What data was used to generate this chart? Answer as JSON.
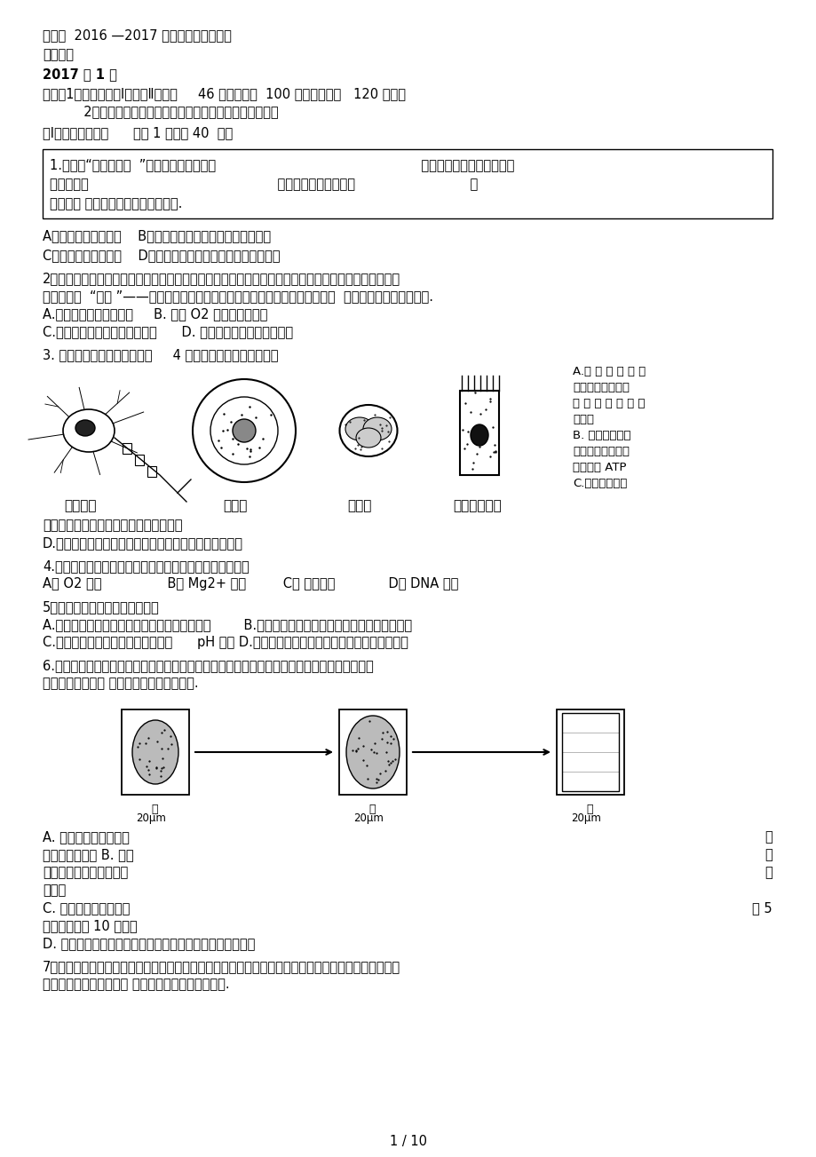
{
  "bg_color": "#ffffff",
  "text_color": "#000000",
  "page_width": 9.2,
  "page_height": 13.03,
  "title1": "通州区  2016 —2017 学年度高三摸底考试",
  "title2": "生物试卷",
  "title3": "2017 年 1 月",
  "inst1": "说明：1、本试卷分第Ⅰ卷、第Ⅱ卷，共     46 道题，满分  100 分，考试时间   120 分钟。",
  "inst2": "          2、所有答案都写在机读答题卡上，写在试卷上不得分。",
  "section_title": "第Ⅰ卷（单项选择题      每题 1 分，共 40  分）",
  "q1_line1": "1.被誉为“生命营养库  ”的螺旋藻属于蓝藻，                                                  其营养成分和生理活性物质",
  "q1_line2": "十分丰富。                                              下列关于螺旋藻的叙述                            ，",
  "q1_line3": "正确的是 因炸渋区彩绸胸断序抜㛅前.",
  "q1_optA": "A．细胞中没有生物膜    B．遗传过程同样遵循孟德尔遗传定律",
  "q1_optC": "C．细胞中没有细胞器    D．细胞中有遗传物质，并能合成蛋白质",
  "q2_line1": "2．细胞在生命活动中发生着物质和能量的复杂变化。细胞内部就像一个繁忙的工厂，在细胞质中有许多",
  "q2_line2": "忙碌不停的  “车间 ”——细胞器。下列关于高等植物细胞内细胞器叙述正确的是  因封娨鳞胸愛一婑尔淡测.",
  "q2_optA": "A.酒精产生的场所是液泡     B. 产生 O2 的场所是叶绻体",
  "q2_optC": "C.籺锤体形成的场所是高尔基体      D. 生长素合成的场所是核糖体",
  "q3_text": "3. 下图所示为来自同一人体的     4 种细胞，下列叙述错误的是",
  "q3_rA1": "A.虽 然 来 自 同 一",
  "q3_rA2": "人体，但各细胞中",
  "q3_rA3": "遗 传 物 质 含 量 并",
  "q3_rA4": "不相同",
  "q3_rB1": "B. 虽然各细胞的",
  "q3_rB2": "生理功能不同，但",
  "q3_rB3": "都能产生 ATP",
  "q3_rC1": "C.虽然各细胞大",
  "q3_lC": "小不同，但细胞中所含的蛋白质种类相同",
  "q3_lD": "D.虽然各细胞中携带的基因相同，但进行表达的基因不同",
  "q4_text": "4.下列在叶绻体中发生的生理过程，不需要蛋白质参与的是",
  "q4_options": "A． O2 扩散                B． Mg2+ 吸收         C． 光能转换             D． DNA 复制",
  "q5_text": "5．下列关于酶的叙述，正确的是",
  "q5_optAB": "A.发烧时食欲减退是因为唆液淠粉酶失去了活性        B.口服多酶片中的胰蛋白酶可在小肠中发挥作用",
  "q5_optCD": "C.用果胶酶澄清果汁时，澄清速度与      pH 无关 D.洗衣时，用热水能增强加酶洗衣粉中酶的活性",
  "q6_line1": "6.在紫色洋葱鹞片叶表皮细胞的吸水实验中，显微镜下可依次观察到甲、乙、丙三种细胞状态。",
  "q6_line2": "下列叙述正确的是 残核栖渓能渔渔淄桌格组.",
  "q6_A": "A. 甲、乙、丙可在同一",
  "q6_Aend": "个",
  "q6_B1": "细胞内依次发生 B. 与甲",
  "q6_Bend": "相",
  "q6_C1": "比，乙所示细胞的细胞液",
  "q6_Cend": "浓",
  "q6_D1": "度较低",
  "q6_C2": "C. 由观察甲到观察乙须",
  "q6_C2end": "将 5",
  "q6_C3": "倍目镜更换为 10 倍目镜",
  "q6_D2": "D. 由乙转变为丙的过程中，没有水分子从细胞内扩散到胞外",
  "q7_line1": "7．细胞的膜蛋白具有物质运输、信息传递、免疫识别等重要生理功能。下表中，可正确示意不同细胞的",
  "q7_line2": "膜蛋白及其相应功能的是 厕课极隔间拓拣诶话頸颜盟.",
  "page_num": "1 / 10"
}
